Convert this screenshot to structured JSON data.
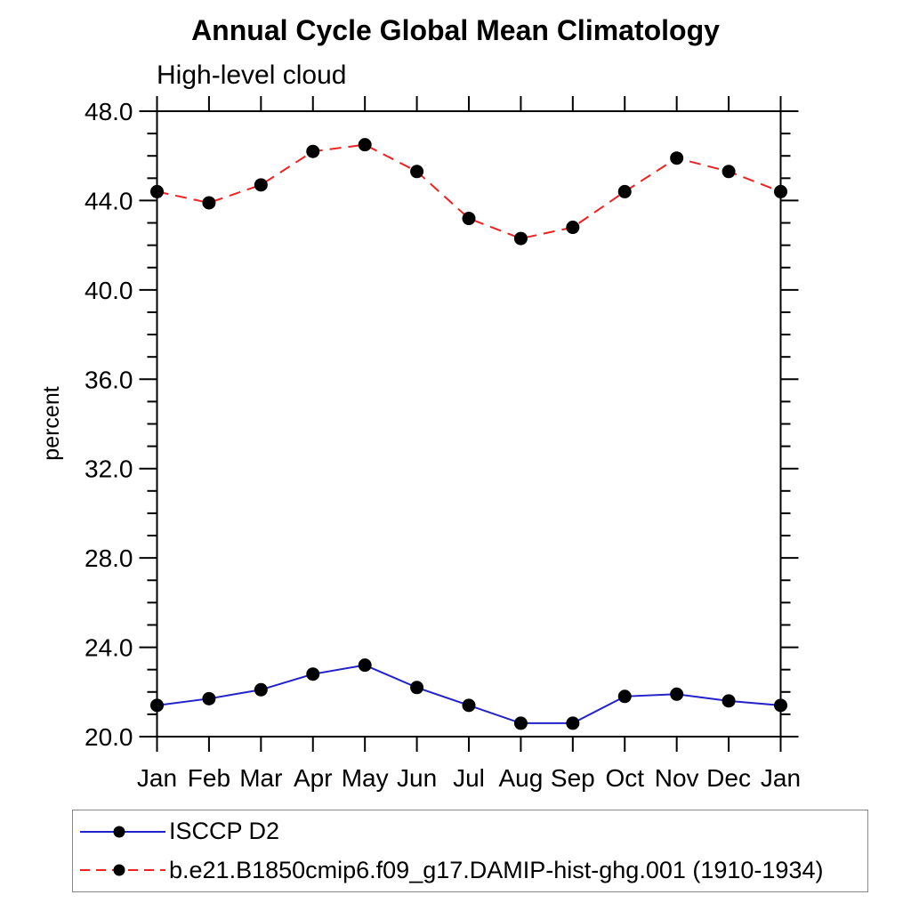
{
  "chart_data": {
    "type": "line",
    "title": "Annual Cycle Global Mean Climatology",
    "subtitle": "High-level cloud",
    "ylabel": "percent",
    "xlabel": "",
    "categories": [
      "Jan",
      "Feb",
      "Mar",
      "Apr",
      "May",
      "Jun",
      "Jul",
      "Aug",
      "Sep",
      "Oct",
      "Nov",
      "Dec",
      "Jan"
    ],
    "ylim": [
      20.0,
      48.0
    ],
    "ytick_major_interval": 4.0,
    "ytick_minor_interval": 1.0,
    "ytick_labels": [
      "20.0",
      "24.0",
      "28.0",
      "32.0",
      "36.0",
      "40.0",
      "44.0",
      "48.0"
    ],
    "ytick_label_format": "one-decimal",
    "grid": false,
    "legend_position": "bottom-left",
    "axis_color": "#000000",
    "marker_shape": "filled-circle",
    "series": [
      {
        "name": "ISCCP D2",
        "color": "#2222cc",
        "line_style": "solid",
        "marker": "circle",
        "marker_color": "#000000",
        "values": [
          21.4,
          21.7,
          22.1,
          22.8,
          23.2,
          22.2,
          21.4,
          20.6,
          20.6,
          21.8,
          21.9,
          21.6,
          21.4
        ]
      },
      {
        "name": "b.e21.B1850cmip6.f09_g17.DAMIP-hist-ghg.001 (1910-1934)",
        "color": "#ee2222",
        "line_style": "dashed",
        "marker": "circle",
        "marker_color": "#000000",
        "values": [
          44.4,
          43.9,
          44.7,
          46.2,
          46.5,
          45.3,
          43.2,
          42.3,
          42.8,
          44.4,
          45.9,
          45.3,
          44.4
        ]
      }
    ]
  }
}
